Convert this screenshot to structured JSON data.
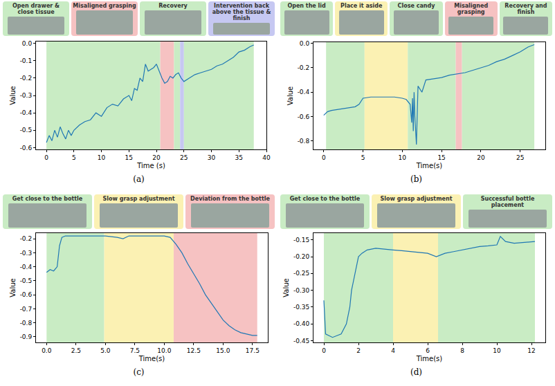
{
  "chart_data": [
    {
      "type": "line",
      "title": "(a)",
      "x_label": "Time (s)",
      "y_label": "Value",
      "color": "#1f77b4",
      "xlim": [
        -1.9,
        40
      ],
      "xticks": [
        0,
        5,
        10,
        15,
        20,
        25,
        30,
        35,
        40
      ],
      "ylim": [
        -0.61,
        0.01
      ],
      "yticks": [
        -0.6,
        -0.5,
        -0.4,
        -0.3,
        -0.2,
        -0.1,
        {
          "value": 0,
          "label": "0.0"
        }
      ],
      "phases": [
        {
          "text": "Open drawer & close tissue",
          "color": "#c9ecc4"
        },
        {
          "text": "Misaligned grasping",
          "color": "#f6c2c2"
        },
        {
          "text": "Recovery",
          "color": "#c9ecc4"
        },
        {
          "text": "Intervention back above the tissue & finish",
          "color": "#c6c8f2"
        }
      ],
      "regions": [
        {
          "x0": 0,
          "x1": 20.7,
          "color": "#c9ecc4"
        },
        {
          "x0": 20.7,
          "x1": 23.2,
          "color": "#f6c2c2"
        },
        {
          "x0": 23.2,
          "x1": 24.3,
          "color": "#c9ecc4"
        },
        {
          "x0": 24.3,
          "x1": 25.0,
          "color": "#c6c8f2"
        },
        {
          "x0": 25.0,
          "x1": 37.7,
          "color": "#c9ecc4"
        }
      ],
      "x": [
        0,
        0.5,
        1,
        1.5,
        2,
        2.5,
        3,
        3.5,
        4,
        4.5,
        5,
        6,
        7,
        8,
        9,
        10,
        11,
        12,
        13,
        14,
        15,
        15.5,
        16,
        16.5,
        17,
        17.5,
        18,
        18.5,
        19,
        19.5,
        20,
        20.5,
        21,
        21.5,
        22,
        22.5,
        23,
        23.5,
        24,
        24.5,
        25,
        26,
        27,
        28,
        29,
        30,
        31,
        32,
        33,
        34,
        35,
        36,
        37,
        37.7
      ],
      "values": [
        -0.57,
        -0.53,
        -0.56,
        -0.5,
        -0.54,
        -0.48,
        -0.52,
        -0.55,
        -0.5,
        -0.53,
        -0.5,
        -0.47,
        -0.45,
        -0.44,
        -0.4,
        -0.42,
        -0.37,
        -0.35,
        -0.36,
        -0.32,
        -0.3,
        -0.33,
        -0.26,
        -0.27,
        -0.2,
        -0.22,
        -0.12,
        -0.16,
        -0.15,
        -0.14,
        -0.12,
        -0.16,
        -0.2,
        -0.23,
        -0.22,
        -0.19,
        -0.2,
        -0.18,
        -0.17,
        -0.2,
        -0.22,
        -0.2,
        -0.18,
        -0.17,
        -0.16,
        -0.15,
        -0.13,
        -0.12,
        -0.1,
        -0.08,
        -0.05,
        -0.04,
        -0.02,
        -0.01
      ]
    },
    {
      "type": "line",
      "title": "(b)",
      "x_label": "Time(s)",
      "y_label": "Value",
      "color": "#1f77b4",
      "xlim": [
        -1.3,
        28.2
      ],
      "xticks": [
        0,
        5,
        10,
        15,
        20,
        25
      ],
      "ylim": [
        -0.87,
        0.01
      ],
      "yticks": [
        -0.8,
        -0.6,
        -0.4,
        -0.2,
        {
          "value": 0,
          "label": "0.0"
        }
      ],
      "phases": [
        {
          "text": "Open the lid",
          "color": "#c9ecc4"
        },
        {
          "text": "Place it aside",
          "color": "#fbf1b3"
        },
        {
          "text": "Close candy",
          "color": "#c9ecc4"
        },
        {
          "text": "Misaligned grasping",
          "color": "#f6c2c2"
        },
        {
          "text": "Recovery and finish",
          "color": "#c9ecc4"
        }
      ],
      "regions": [
        {
          "x0": 0.3,
          "x1": 5.2,
          "color": "#c9ecc4"
        },
        {
          "x0": 5.2,
          "x1": 10.7,
          "color": "#fbf1b3"
        },
        {
          "x0": 10.7,
          "x1": 16.8,
          "color": "#c9ecc4"
        },
        {
          "x0": 16.8,
          "x1": 17.6,
          "color": "#f6c2c2"
        },
        {
          "x0": 17.6,
          "x1": 26.8,
          "color": "#c9ecc4"
        }
      ],
      "x": [
        0,
        0.5,
        1,
        2,
        3,
        4,
        4.5,
        5,
        6,
        7,
        8,
        9,
        10,
        10.5,
        11,
        11.2,
        11.3,
        11.4,
        11.5,
        11.6,
        11.8,
        12,
        12.5,
        13,
        14,
        15,
        16,
        17,
        18,
        19,
        20,
        21,
        22,
        23,
        24,
        25,
        25.5,
        26,
        26.8
      ],
      "values": [
        -0.59,
        -0.56,
        -0.55,
        -0.54,
        -0.53,
        -0.52,
        -0.5,
        -0.45,
        -0.44,
        -0.44,
        -0.44,
        -0.44,
        -0.45,
        -0.46,
        -0.5,
        -0.65,
        -0.45,
        -0.72,
        -0.4,
        -0.6,
        -0.83,
        -0.35,
        -0.4,
        -0.3,
        -0.29,
        -0.28,
        -0.26,
        -0.25,
        -0.24,
        -0.22,
        -0.2,
        -0.18,
        -0.15,
        -0.13,
        -0.1,
        -0.07,
        -0.05,
        -0.03,
        -0.01
      ]
    },
    {
      "type": "line",
      "title": "(c)",
      "x_label": "Time(s)",
      "y_label": "Value",
      "color": "#1f77b4",
      "xlim": [
        -0.9,
        18.8
      ],
      "xticks": [
        {
          "value": 0,
          "label": "0.0"
        },
        2.5,
        {
          "value": 5,
          "label": "5.0"
        },
        7.5,
        {
          "value": 10,
          "label": "10.0"
        },
        12.5,
        {
          "value": 15,
          "label": "15.0"
        },
        17.5
      ],
      "ylim": [
        -0.94,
        -0.16
      ],
      "yticks": [
        -0.9,
        -0.8,
        -0.7,
        -0.6,
        -0.5,
        -0.4,
        -0.3,
        -0.2
      ],
      "phases": [
        {
          "text": "Get close to the bottle",
          "color": "#c9ecc4"
        },
        {
          "text": "Slow grasp adjustment",
          "color": "#fbf1b3"
        },
        {
          "text": "Deviation from the  bottle",
          "color": "#f6c2c2"
        }
      ],
      "regions": [
        {
          "x0": 0,
          "x1": 4.9,
          "color": "#c9ecc4"
        },
        {
          "x0": 4.9,
          "x1": 10.8,
          "color": "#fbf1b3"
        },
        {
          "x0": 10.8,
          "x1": 17.9,
          "color": "#f6c2c2"
        }
      ],
      "x": [
        0,
        0.3,
        0.6,
        0.9,
        1.1,
        1.3,
        1.6,
        2,
        3,
        4,
        5,
        6,
        6.5,
        7,
        8,
        9,
        10,
        10.5,
        11,
        11.5,
        12,
        12.5,
        13,
        13.5,
        14,
        14.5,
        15,
        15.5,
        16,
        16.5,
        17,
        17.5,
        17.9
      ],
      "values": [
        -0.44,
        -0.42,
        -0.43,
        -0.4,
        -0.25,
        -0.19,
        -0.18,
        -0.18,
        -0.18,
        -0.18,
        -0.18,
        -0.19,
        -0.2,
        -0.18,
        -0.18,
        -0.18,
        -0.18,
        -0.19,
        -0.24,
        -0.3,
        -0.38,
        -0.45,
        -0.52,
        -0.6,
        -0.66,
        -0.72,
        -0.78,
        -0.82,
        -0.85,
        -0.87,
        -0.88,
        -0.89,
        -0.89
      ]
    },
    {
      "type": "line",
      "title": "(d)",
      "x_label": "Time(s)",
      "y_label": "Value",
      "color": "#1f77b4",
      "xlim": [
        -0.6,
        12.8
      ],
      "xticks": [
        0,
        2,
        4,
        6,
        8,
        10,
        12
      ],
      "ylim": [
        -0.455,
        -0.13
      ],
      "yticks": [
        -0.45,
        {
          "value": -0.4,
          "label": "-0.40"
        },
        -0.35,
        {
          "value": -0.3,
          "label": "-0.30"
        },
        -0.25,
        {
          "value": -0.2,
          "label": "-0.20"
        },
        -0.15
      ],
      "phases": [
        {
          "text": "Get close to the bottle",
          "color": "#c9ecc4"
        },
        {
          "text": "Slow grasp adjustment",
          "color": "#fbf1b3"
        },
        {
          "text": "Successful bottle placement",
          "color": "#c9ecc4"
        }
      ],
      "regions": [
        {
          "x0": 0,
          "x1": 4,
          "color": "#c9ecc4"
        },
        {
          "x0": 4,
          "x1": 6.6,
          "color": "#fbf1b3"
        },
        {
          "x0": 6.6,
          "x1": 12.2,
          "color": "#c9ecc4"
        }
      ],
      "x": [
        0,
        0.1,
        0.5,
        1,
        1.3,
        1.5,
        1.6,
        1.8,
        2,
        2.2,
        2.5,
        3,
        3.5,
        4,
        4.5,
        5,
        5.5,
        6,
        6.5,
        7,
        7.5,
        8,
        8.5,
        9,
        9.5,
        10,
        10.2,
        10.5,
        11,
        11.5,
        12,
        12.2
      ],
      "values": [
        -0.33,
        -0.43,
        -0.44,
        -0.43,
        -0.4,
        -0.35,
        -0.3,
        -0.25,
        -0.2,
        -0.19,
        -0.18,
        -0.175,
        -0.178,
        -0.18,
        -0.182,
        -0.185,
        -0.188,
        -0.19,
        -0.2,
        -0.19,
        -0.185,
        -0.18,
        -0.175,
        -0.17,
        -0.168,
        -0.165,
        -0.14,
        -0.155,
        -0.16,
        -0.158,
        -0.156,
        -0.155
      ]
    }
  ]
}
